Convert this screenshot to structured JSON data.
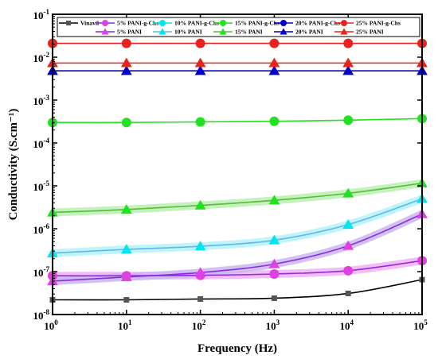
{
  "chart_data": {
    "type": "line",
    "xlabel": "Frequency (Hz)",
    "ylabel": "Conductivity (S.cm⁻¹)",
    "xscale": "log",
    "yscale": "log",
    "xlim": [
      1,
      100000
    ],
    "ylim": [
      1e-08,
      0.1
    ],
    "grid": false,
    "legend_placement": "top",
    "x_ticks": [
      {
        "value": 1,
        "base": "10",
        "exp": "0"
      },
      {
        "value": 10,
        "base": "10",
        "exp": "1"
      },
      {
        "value": 100,
        "base": "10",
        "exp": "2"
      },
      {
        "value": 1000,
        "base": "10",
        "exp": "3"
      },
      {
        "value": 10000,
        "base": "10",
        "exp": "4"
      },
      {
        "value": 100000,
        "base": "10",
        "exp": "5"
      }
    ],
    "y_ticks": [
      {
        "value": 1e-08,
        "base": "10",
        "exp": "-8"
      },
      {
        "value": 1e-07,
        "base": "10",
        "exp": "-7"
      },
      {
        "value": 1e-06,
        "base": "10",
        "exp": "-6"
      },
      {
        "value": 1e-05,
        "base": "10",
        "exp": "-5"
      },
      {
        "value": 0.0001,
        "base": "10",
        "exp": "-4"
      },
      {
        "value": 0.001,
        "base": "10",
        "exp": "-3"
      },
      {
        "value": 0.01,
        "base": "10",
        "exp": "-2"
      },
      {
        "value": 0.1,
        "base": "10",
        "exp": "-1"
      }
    ],
    "series": [
      {
        "name": "Vinavil",
        "marker": "square",
        "color": "#555555",
        "line_color": "#000000",
        "glow": null,
        "x": [
          1,
          10,
          100,
          1000,
          10000,
          100000
        ],
        "y": [
          2.2e-08,
          2.2e-08,
          2.3e-08,
          2.4e-08,
          3.1e-08,
          6.5e-08
        ]
      },
      {
        "name": "5% PANI-g-Chs",
        "marker": "circle",
        "color": "#e040e0",
        "line_color": "#8a2be2",
        "glow": "#f2b0f2",
        "x": [
          1,
          10,
          100,
          1000,
          10000,
          100000
        ],
        "y": [
          8e-08,
          8e-08,
          8.2e-08,
          8.8e-08,
          1.05e-07,
          1.8e-07
        ]
      },
      {
        "name": "10% PANI-g-Chs",
        "marker": "circle",
        "color": "#00e5ee",
        "line_color": "#00e5ee",
        "glow": null,
        "x": [],
        "y": []
      },
      {
        "name": "15% PANI-g-Chs",
        "marker": "circle",
        "color": "#22e022",
        "line_color": "#22e022",
        "glow": null,
        "x": [
          1,
          10,
          100,
          1000,
          10000,
          100000
        ],
        "y": [
          0.0003,
          0.0003,
          0.00031,
          0.00032,
          0.00034,
          0.00037
        ]
      },
      {
        "name": "20% PANI-g-Chs",
        "marker": "circle",
        "color": "#0000cc",
        "line_color": "#0000cc",
        "glow": null,
        "x": [],
        "y": []
      },
      {
        "name": "25% PANI-g-Chs",
        "marker": "circle",
        "color": "#e8231c",
        "line_color": "#e8231c",
        "glow": null,
        "x": [
          1,
          10,
          100,
          1000,
          10000,
          100000
        ],
        "y": [
          0.021,
          0.021,
          0.021,
          0.021,
          0.021,
          0.021
        ]
      },
      {
        "name": "5% PANI",
        "marker": "triangle",
        "color": "#e040e0",
        "line_color": "#8a2be2",
        "glow": "#c9b7ee",
        "x": [
          1,
          10,
          100,
          1000,
          10000,
          100000
        ],
        "y": [
          6e-08,
          7.5e-08,
          9.5e-08,
          1.5e-07,
          4e-07,
          2.2e-06
        ]
      },
      {
        "name": "10% PANI",
        "marker": "triangle",
        "color": "#00e5ee",
        "line_color": "#6ab0f0",
        "glow": "#b0f4f7",
        "x": [
          1,
          10,
          100,
          1000,
          10000,
          100000
        ],
        "y": [
          2.7e-07,
          3.3e-07,
          3.9e-07,
          5.4e-07,
          1.25e-06,
          5e-06
        ]
      },
      {
        "name": "15% PANI",
        "marker": "triangle",
        "color": "#22e022",
        "line_color": "#5ab83a",
        "glow": "#b8f0b0",
        "x": [
          1,
          10,
          100,
          1000,
          10000,
          100000
        ],
        "y": [
          2.4e-06,
          2.8e-06,
          3.5e-06,
          4.6e-06,
          6.7e-06,
          1.15e-05
        ]
      },
      {
        "name": "20% PANI",
        "marker": "triangle",
        "color": "#0000cc",
        "line_color": "#0000cc",
        "glow": null,
        "x": [
          1,
          10,
          100,
          1000,
          10000,
          100000
        ],
        "y": [
          0.0048,
          0.0048,
          0.0048,
          0.0048,
          0.0048,
          0.0048
        ]
      },
      {
        "name": "25% PANI",
        "marker": "triangle",
        "color": "#e8231c",
        "line_color": "#e8231c",
        "glow": null,
        "x": [
          1,
          10,
          100,
          1000,
          10000,
          100000
        ],
        "y": [
          0.0073,
          0.0073,
          0.0073,
          0.0073,
          0.0073,
          0.0073
        ]
      }
    ]
  }
}
